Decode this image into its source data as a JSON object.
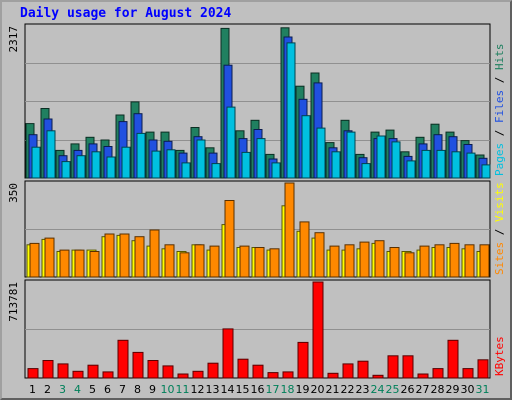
{
  "title": "Daily usage for August 2024",
  "chart_data": {
    "type": "bar",
    "title": "Daily usage for August 2024",
    "categories": [
      "1",
      "2",
      "3",
      "4",
      "5",
      "6",
      "7",
      "8",
      "9",
      "10",
      "11",
      "12",
      "13",
      "14",
      "15",
      "16",
      "17",
      "18",
      "19",
      "20",
      "21",
      "22",
      "23",
      "24",
      "25",
      "26",
      "27",
      "28",
      "29",
      "30",
      "31"
    ],
    "weekend_days": [
      "3",
      "4",
      "10",
      "11",
      "17",
      "18",
      "24",
      "25",
      "31"
    ],
    "panels": [
      {
        "id": "top",
        "ymax": 2317,
        "ymax_label": "2317",
        "legend": [
          {
            "text": "Pages",
            "color": "#00c0e0"
          },
          {
            "text": " / ",
            "color": "#000000"
          },
          {
            "text": "Files",
            "color": "#2050e0"
          },
          {
            "text": " / ",
            "color": "#000000"
          },
          {
            "text": "Hits",
            "color": "#208060"
          }
        ],
        "series": [
          {
            "name": "Hits",
            "color": "#208060",
            "values": [
              830,
              1060,
              420,
              520,
              620,
              580,
              960,
              1160,
              700,
              700,
              420,
              770,
              460,
              2280,
              720,
              880,
              360,
              2290,
              1400,
              1600,
              540,
              880,
              360,
              700,
              730,
              400,
              620,
              820,
              700,
              570,
              350
            ]
          },
          {
            "name": "Files",
            "color": "#2050e0",
            "values": [
              660,
              900,
              340,
              420,
              520,
              480,
              860,
              980,
              580,
              560,
              380,
              630,
              380,
              1720,
              600,
              740,
              290,
              2150,
              1200,
              1450,
              460,
              720,
              310,
              600,
              600,
              330,
              520,
              660,
              630,
              510,
              300
            ]
          },
          {
            "name": "Pages",
            "color": "#00c0e0",
            "values": [
              470,
              720,
              250,
              340,
              400,
              320,
              470,
              680,
              410,
              430,
              230,
              580,
              220,
              1080,
              390,
              600,
              230,
              2060,
              950,
              760,
              400,
              700,
              220,
              640,
              550,
              260,
              420,
              420,
              400,
              380,
              200
            ]
          }
        ]
      },
      {
        "id": "mid",
        "ymax": 350,
        "ymax_label": "350",
        "legend": [
          {
            "text": "Sites",
            "color": "#ff8800"
          },
          {
            "text": " / ",
            "color": "#000000"
          },
          {
            "text": "Visits",
            "color": "#ffff00"
          }
        ],
        "series": [
          {
            "name": "Visits",
            "color": "#ffff00",
            "values": [
              120,
              140,
              95,
              100,
              100,
              150,
              155,
              135,
              115,
              105,
              95,
              120,
              100,
              195,
              110,
              110,
              100,
              265,
              170,
              145,
              100,
              100,
              105,
              125,
              95,
              95,
              100,
              110,
              110,
              105,
              95
            ]
          },
          {
            "name": "Sites",
            "color": "#ff8800",
            "values": [
              125,
              145,
              100,
              100,
              95,
              160,
              160,
              150,
              175,
              120,
              90,
              120,
              115,
              285,
              115,
              110,
              105,
              350,
              205,
              165,
              115,
              120,
              130,
              135,
              110,
              90,
              115,
              120,
              125,
              120,
              120
            ]
          }
        ]
      },
      {
        "id": "bot",
        "ymax": 713781,
        "ymax_label": "713781",
        "legend": [
          {
            "text": "KBytes",
            "color": "#ff0000"
          }
        ],
        "series": [
          {
            "name": "KBytes",
            "color": "#ff0000",
            "values": [
              70000,
              130000,
              105000,
              50000,
              95000,
              45000,
              280000,
              190000,
              130000,
              90000,
              30000,
              50000,
              110000,
              365000,
              140000,
              95000,
              40000,
              45000,
              265000,
              713781,
              35000,
              105000,
              125000,
              20000,
              165000,
              165000,
              30000,
              70000,
              280000,
              70000,
              135000
            ]
          }
        ]
      }
    ]
  }
}
